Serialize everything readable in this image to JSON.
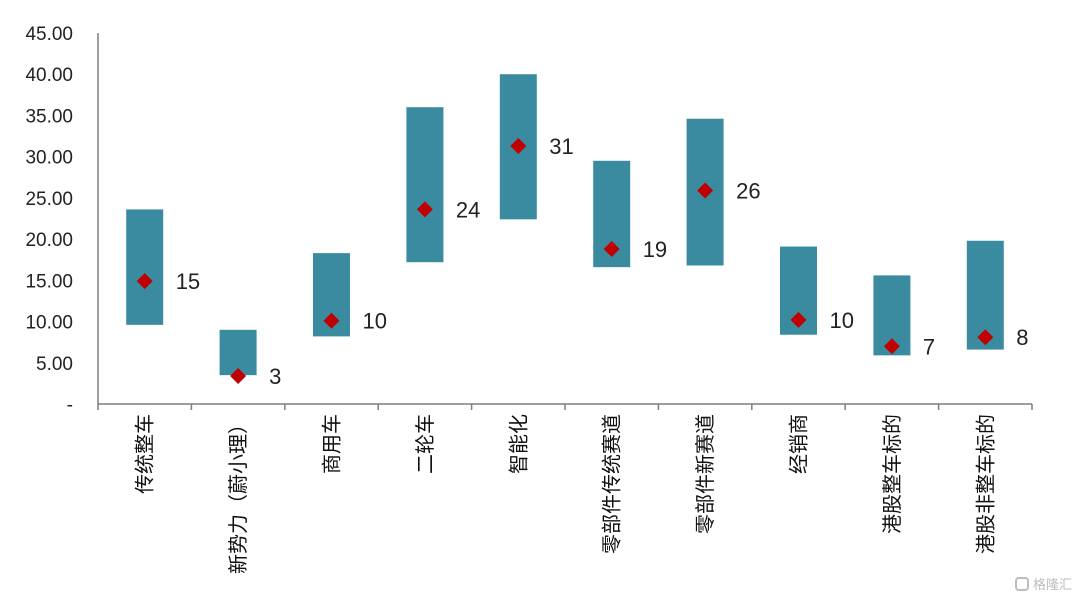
{
  "chart_data": {
    "type": "floating-bar-with-markers",
    "categories": [
      "传统整车",
      "新势力（蔚小理）",
      "商用车",
      "二轮车",
      "智能化",
      "零部件传统赛道",
      "零部件新赛道",
      "经销商",
      "港股整车标的",
      "港股非整车标的"
    ],
    "ranges": [
      {
        "low": 9.6,
        "high": 23.6
      },
      {
        "low": 3.5,
        "high": 9.0
      },
      {
        "low": 8.2,
        "high": 18.3
      },
      {
        "low": 17.2,
        "high": 36.0
      },
      {
        "low": 22.4,
        "high": 40.0
      },
      {
        "low": 16.6,
        "high": 29.5
      },
      {
        "low": 16.8,
        "high": 34.6
      },
      {
        "low": 8.4,
        "high": 19.1
      },
      {
        "low": 5.9,
        "high": 15.6
      },
      {
        "low": 6.6,
        "high": 19.8
      }
    ],
    "markers": [
      14.9,
      3.4,
      10.1,
      23.6,
      31.3,
      18.8,
      25.9,
      10.2,
      7.0,
      8.1
    ],
    "marker_labels": [
      "15",
      "3",
      "10",
      "24",
      "31",
      "19",
      "26",
      "10",
      "7",
      "8"
    ],
    "y_ticks": [
      "-",
      "5.00",
      "10.00",
      "15.00",
      "20.00",
      "25.00",
      "30.00",
      "35.00",
      "40.00",
      "45.00"
    ],
    "ylim": [
      0,
      45
    ],
    "grid": false,
    "bar_color": "#3b8ba0",
    "marker_color": "#c00000"
  },
  "watermark": {
    "text": "格隆汇"
  }
}
